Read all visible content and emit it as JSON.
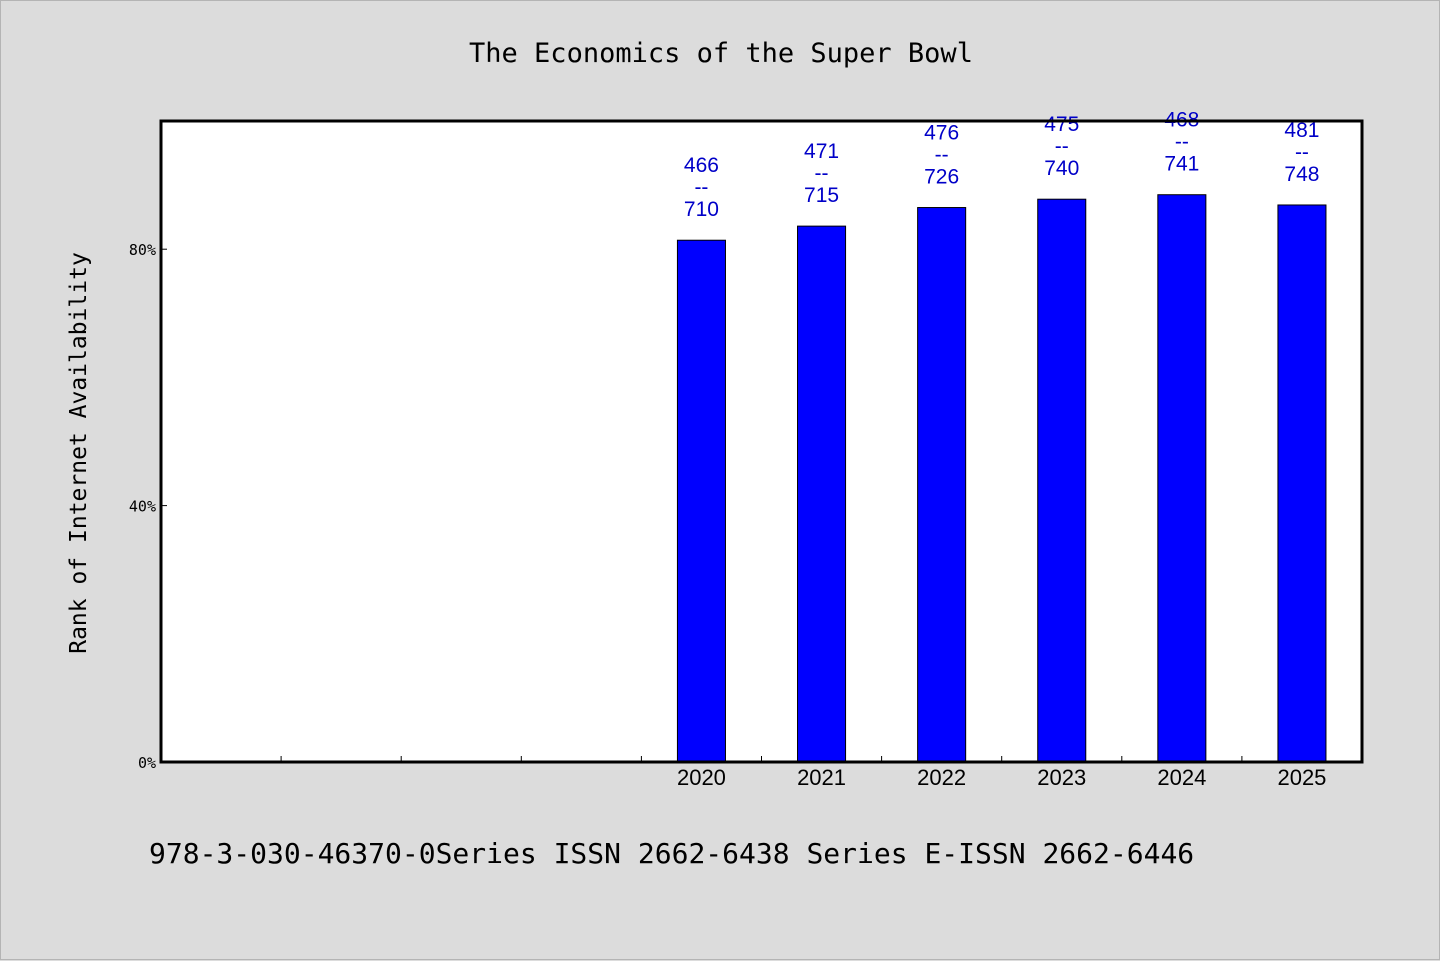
{
  "chart_data": {
    "type": "bar",
    "title": "The Economics of the Super Bowl",
    "xlabel": "",
    "ylabel": "Rank of Internet Availability",
    "ylim": [
      0,
      100
    ],
    "yticks": [
      {
        "value": 0,
        "label": "0%"
      },
      {
        "value": 40,
        "label": "40%"
      },
      {
        "value": 80,
        "label": "80%"
      }
    ],
    "x_slots": 10,
    "grid": false,
    "categories": [
      "2020",
      "2021",
      "2022",
      "2023",
      "2024",
      "2025"
    ],
    "slot_offset": 4,
    "values": [
      81.4,
      83.6,
      86.5,
      87.8,
      88.5,
      86.9
    ],
    "data_labels": [
      [
        "466",
        "--",
        "710"
      ],
      [
        "471",
        "--",
        "715"
      ],
      [
        "476",
        "--",
        "726"
      ],
      [
        "475",
        "--",
        "740"
      ],
      [
        "468",
        "--",
        "741"
      ],
      [
        "481",
        "--",
        "748"
      ]
    ],
    "bar_color": "#0000ff",
    "label_color": "#0000c8"
  },
  "footer": {
    "text": "978-3-030-46370-0Series ISSN 2662-6438 Series E-ISSN 2662-6446"
  },
  "colors": {
    "background": "#dcdcdc",
    "plot_background": "#ffffff",
    "axis": "#000000"
  }
}
